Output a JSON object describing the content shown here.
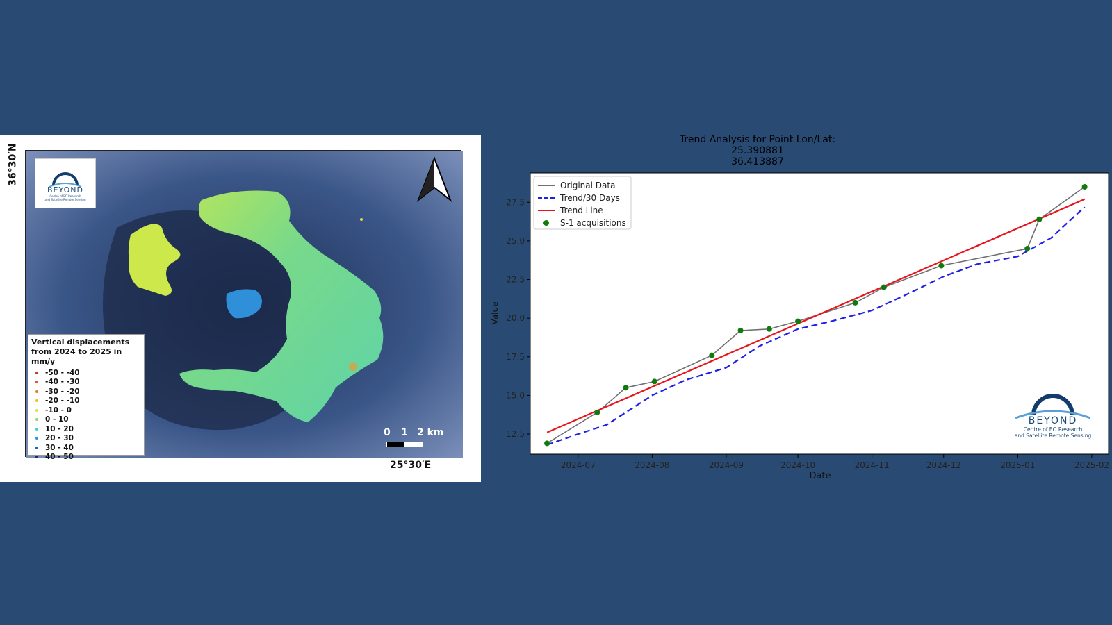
{
  "map": {
    "lat_label": "36°30′N",
    "lon_label": "25°30′E",
    "logo": {
      "brand": "BEYOND",
      "tagline1": "Centre of EO Research",
      "tagline2": "and Satellite Remote Sensing"
    },
    "legend": {
      "title1": "Vertical displacements",
      "title2": "from 2024 to 2025 in mm/y",
      "items": [
        {
          "label": "-50 - -40",
          "color": "#c0392b"
        },
        {
          "label": "-40 - -30",
          "color": "#e74c3c"
        },
        {
          "label": "-30 - -20",
          "color": "#e67e22"
        },
        {
          "label": "-20 - -10",
          "color": "#f1c40f"
        },
        {
          "label": "-10 - 0",
          "color": "#d4e157"
        },
        {
          "label": "0 - 10",
          "color": "#8bd96e"
        },
        {
          "label": "10 - 20",
          "color": "#3ad3c4"
        },
        {
          "label": "20 - 30",
          "color": "#2196f3"
        },
        {
          "label": "30 - 40",
          "color": "#1565c0"
        },
        {
          "label": "40 - 50",
          "color": "#1a237e"
        }
      ]
    },
    "scale": {
      "l0": "0",
      "l1": "1",
      "l2": "2 km"
    }
  },
  "chart_logo": {
    "brand": "BEYOND",
    "tagline1": "Centre of EO Research",
    "tagline2": "and Satellite Remote Sensing"
  },
  "chart_data": {
    "type": "line",
    "title": "Trend Analysis for Point Lon/Lat:",
    "title_line2": "25.390881",
    "title_line3": "36.413887",
    "xlabel": "Date",
    "ylabel": "Value",
    "x_ticks": [
      "2024-07",
      "2024-08",
      "2024-09",
      "2024-10",
      "2024-11",
      "2024-12",
      "2025-01",
      "2025-02"
    ],
    "x_range": [
      "2024-06-11",
      "2025-02-08"
    ],
    "y_ticks": [
      12.5,
      15.0,
      17.5,
      20.0,
      22.5,
      25.0,
      27.5
    ],
    "ylim": [
      11.2,
      29.4
    ],
    "legend_position": "top-left",
    "series": [
      {
        "name": "Original Data",
        "style": "solid",
        "color": "#707070",
        "points": [
          [
            "2024-06-18",
            11.9
          ],
          [
            "2024-07-09",
            13.9
          ],
          [
            "2024-07-21",
            15.5
          ],
          [
            "2024-08-02",
            15.9
          ],
          [
            "2024-08-26",
            17.6
          ],
          [
            "2024-09-07",
            19.2
          ],
          [
            "2024-09-19",
            19.3
          ],
          [
            "2024-10-01",
            19.8
          ],
          [
            "2024-10-25",
            21.0
          ],
          [
            "2024-11-06",
            22.0
          ],
          [
            "2024-11-30",
            23.4
          ],
          [
            "2025-01-05",
            24.5
          ],
          [
            "2025-01-10",
            26.4
          ],
          [
            "2025-01-29",
            28.5
          ]
        ]
      },
      {
        "name": "Trend/30 Days",
        "style": "dashed",
        "color": "#1f1fe8",
        "points": [
          [
            "2024-06-18",
            11.8
          ],
          [
            "2024-07-01",
            12.5
          ],
          [
            "2024-07-13",
            13.1
          ],
          [
            "2024-08-01",
            15.0
          ],
          [
            "2024-08-15",
            16.0
          ],
          [
            "2024-09-01",
            16.8
          ],
          [
            "2024-09-15",
            18.2
          ],
          [
            "2024-10-01",
            19.3
          ],
          [
            "2024-10-15",
            19.8
          ],
          [
            "2024-11-01",
            20.5
          ],
          [
            "2024-11-15",
            21.5
          ],
          [
            "2024-12-01",
            22.7
          ],
          [
            "2024-12-15",
            23.5
          ],
          [
            "2025-01-01",
            24.0
          ],
          [
            "2025-01-15",
            25.2
          ],
          [
            "2025-01-29",
            27.2
          ]
        ]
      },
      {
        "name": "Trend Line",
        "style": "solid",
        "color": "#e8141c",
        "points": [
          [
            "2024-06-18",
            12.6
          ],
          [
            "2025-01-29",
            27.7
          ]
        ]
      },
      {
        "name": "S-1 acquisitions",
        "style": "marker",
        "color": "#0f7a0f",
        "points": [
          [
            "2024-06-18",
            11.9
          ],
          [
            "2024-07-09",
            13.9
          ],
          [
            "2024-07-21",
            15.5
          ],
          [
            "2024-08-02",
            15.9
          ],
          [
            "2024-08-26",
            17.6
          ],
          [
            "2024-09-07",
            19.2
          ],
          [
            "2024-09-19",
            19.3
          ],
          [
            "2024-10-01",
            19.8
          ],
          [
            "2024-10-25",
            21.0
          ],
          [
            "2024-11-06",
            22.0
          ],
          [
            "2024-11-30",
            23.4
          ],
          [
            "2025-01-05",
            24.5
          ],
          [
            "2025-01-10",
            26.4
          ],
          [
            "2025-01-29",
            28.5
          ]
        ]
      }
    ]
  }
}
